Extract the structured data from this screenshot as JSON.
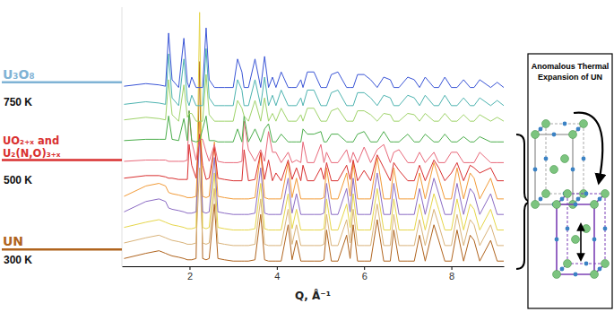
{
  "chart_data": {
    "type": "line",
    "x_label": "Q, Å⁻¹",
    "x": [
      0.5,
      1.0,
      1.3,
      1.45,
      1.52,
      1.6,
      1.75,
      1.87,
      1.95,
      1.99,
      2.05,
      2.15,
      2.23,
      2.3,
      2.38,
      2.45,
      2.57,
      2.65,
      2.8,
      3.0,
      3.1,
      3.2,
      3.25,
      3.35,
      3.5,
      3.63,
      3.72,
      3.81,
      3.9,
      3.98,
      4.1,
      4.26,
      4.35,
      4.45,
      4.55,
      4.6,
      4.7,
      4.85,
      5.01,
      5.08,
      5.14,
      5.25,
      5.4,
      5.6,
      5.68,
      5.75,
      5.85,
      6.0,
      6.15,
      6.3,
      6.45,
      6.6,
      6.68,
      6.8,
      7.0,
      7.15,
      7.27,
      7.4,
      7.6,
      7.71,
      7.85,
      8.0,
      8.13,
      8.28,
      8.43,
      8.52,
      8.65,
      8.9,
      9.05,
      9.2
    ],
    "series": [
      {
        "color": "#b0641e",
        "values": [
          3,
          5,
          6,
          5,
          4.5,
          4,
          3.5,
          3,
          2.5,
          2.5,
          2.5,
          3,
          79,
          3,
          2.5,
          3,
          24,
          3,
          2.5,
          2,
          2,
          2,
          2,
          2,
          2.5,
          20,
          2.5,
          2,
          2,
          2,
          2,
          16,
          2.5,
          10,
          2,
          2,
          2,
          2,
          2,
          2.5,
          14,
          2,
          2,
          12,
          3,
          16,
          2,
          2,
          2,
          18,
          2,
          2,
          14,
          2,
          2,
          2,
          12,
          2,
          16,
          10,
          2,
          2,
          14,
          2,
          12,
          10,
          2,
          10,
          2,
          2
        ]
      },
      {
        "color": "#d9b37a",
        "values": [
          9,
          11,
          12,
          11,
          10.5,
          10,
          9.5,
          9,
          8.5,
          8.5,
          8.5,
          9,
          38,
          9,
          8.5,
          9,
          30,
          9,
          8.5,
          8,
          8,
          8,
          8,
          8,
          8.5,
          26,
          8.5,
          8,
          8,
          8,
          8,
          22,
          8.5,
          16,
          8,
          8,
          8,
          8,
          8,
          8.5,
          20,
          8,
          8,
          18,
          9,
          22,
          8,
          8,
          8,
          24,
          8,
          8,
          20,
          8,
          8,
          8,
          18,
          8,
          22,
          16,
          8,
          8,
          20,
          8,
          18,
          16,
          8,
          16,
          8,
          8
        ]
      },
      {
        "color": "#e6d64a",
        "values": [
          15,
          17,
          18,
          17,
          16.5,
          16,
          15.5,
          15,
          14.5,
          14.5,
          14.5,
          15,
          98,
          15,
          14.5,
          15,
          36,
          15,
          14.5,
          14,
          14,
          14,
          14,
          14,
          14.5,
          32,
          14.5,
          14,
          14,
          14,
          14,
          28,
          14.5,
          22,
          14,
          14,
          14,
          14,
          14,
          14.5,
          26,
          14,
          14,
          24,
          15,
          28,
          14,
          14,
          14,
          30,
          14,
          14,
          26,
          14,
          14,
          14,
          24,
          14,
          28,
          22,
          14,
          14,
          26,
          14,
          24,
          22,
          14,
          22,
          14,
          14
        ]
      },
      {
        "color": "#8c6cc4",
        "values": [
          21,
          25,
          26,
          25,
          22.5,
          22,
          21.5,
          21,
          20.5,
          20.5,
          20.5,
          21,
          50,
          21,
          20.5,
          21,
          42,
          21,
          20.5,
          20,
          20,
          20,
          20,
          20,
          20.5,
          38,
          20.5,
          20,
          20,
          20,
          20,
          34,
          20.5,
          28,
          20,
          20,
          20,
          20,
          20,
          20.5,
          32,
          20,
          20,
          30,
          21,
          34,
          20,
          20,
          20,
          36,
          20,
          20,
          32,
          20,
          20,
          20,
          30,
          20,
          34,
          28,
          20,
          20,
          32,
          20,
          30,
          28,
          20,
          28,
          20,
          20
        ]
      },
      {
        "color": "#f29b38",
        "values": [
          27,
          31,
          32,
          31,
          28.5,
          28,
          27.5,
          27,
          26.5,
          26.5,
          26.5,
          27,
          56,
          27,
          26.5,
          27,
          48,
          27,
          26.5,
          26,
          26,
          26,
          26,
          26,
          26.5,
          44,
          26.5,
          26,
          26,
          26,
          26,
          40,
          26.5,
          34,
          26,
          26,
          26,
          26,
          26,
          26.5,
          38,
          26,
          26,
          36,
          27,
          40,
          26,
          26,
          26,
          42,
          26,
          26,
          38,
          26,
          26,
          26,
          36,
          26,
          40,
          34,
          26,
          26,
          38,
          26,
          36,
          34,
          26,
          34,
          26,
          26
        ]
      },
      {
        "color": "#d93030",
        "values": [
          34,
          35,
          35,
          34.5,
          34,
          34,
          33.5,
          33.5,
          33.5,
          47,
          39,
          34,
          51,
          39,
          33.5,
          34,
          46,
          34,
          33.5,
          33,
          33,
          33,
          45,
          33,
          33.5,
          44,
          33.5,
          41,
          33,
          36,
          33,
          41,
          33.5,
          38,
          33,
          39,
          33,
          33,
          38,
          33.5,
          40,
          33,
          33,
          39,
          33.5,
          41,
          33,
          37,
          33,
          43,
          38,
          33,
          40,
          37,
          33,
          33,
          39,
          33,
          41,
          38,
          33,
          36,
          40,
          33,
          39,
          38,
          36,
          38,
          33,
          33
        ]
      },
      {
        "color": "#e8697a",
        "values": [
          40.5,
          41,
          41,
          41,
          40.5,
          40.5,
          40.5,
          40.5,
          41,
          60,
          48,
          41,
          49,
          49,
          44,
          40.5,
          47,
          40.5,
          40,
          40,
          40,
          40.5,
          56,
          45,
          40.5,
          45,
          40.5,
          52,
          44,
          44,
          40,
          44,
          40,
          41,
          40,
          48,
          40,
          40,
          47,
          40,
          44,
          40,
          40,
          45,
          40,
          44,
          40,
          46,
          40,
          45,
          47,
          40,
          44,
          45,
          40,
          40,
          44,
          40,
          44,
          40,
          40,
          44,
          44,
          40,
          40,
          40,
          44,
          40,
          40,
          40
        ]
      },
      {
        "color": "#4cae4c",
        "values": [
          48.5,
          49,
          49,
          49,
          58,
          49,
          48.5,
          57,
          48.5,
          60,
          48.5,
          48,
          48.5,
          53,
          58,
          48.5,
          48.5,
          48,
          48,
          48,
          53,
          48,
          58,
          48,
          53,
          48,
          53,
          55,
          48,
          48,
          51,
          48,
          48,
          48,
          48,
          53,
          51,
          51,
          52,
          48,
          48,
          51,
          51,
          48,
          48,
          48,
          51,
          52,
          48,
          48,
          52,
          48,
          48,
          48,
          51,
          48,
          48,
          51,
          48,
          48,
          51,
          48,
          48,
          50,
          48,
          48,
          50,
          48,
          48,
          48
        ]
      },
      {
        "color": "#9fd36a",
        "values": [
          56.5,
          57.5,
          57,
          56.5,
          72,
          58.5,
          56,
          70,
          57.5,
          59,
          59,
          56,
          56,
          56,
          74,
          58.5,
          56,
          56,
          56,
          56,
          64,
          61,
          58,
          56,
          64,
          56,
          65,
          56,
          59,
          56,
          61,
          56,
          56,
          56,
          58.5,
          56,
          61,
          61,
          56,
          56,
          56,
          60,
          61,
          56,
          56,
          56,
          60,
          60,
          58.5,
          56,
          59,
          58.5,
          56,
          56,
          59,
          58.5,
          56,
          59,
          56,
          56,
          59,
          56,
          56,
          58.5,
          56,
          56,
          58.5,
          56,
          57.5,
          56
        ]
      },
      {
        "color": "#4db3b0",
        "values": [
          62.5,
          63.5,
          63,
          62.5,
          82,
          65,
          62,
          80,
          64,
          62,
          66,
          62,
          62,
          62,
          84,
          65,
          62,
          62,
          62,
          62,
          72,
          68,
          62,
          62,
          72,
          62,
          73,
          62,
          66,
          62,
          68,
          62,
          62,
          62,
          65,
          62,
          68,
          68,
          62,
          62,
          62,
          67,
          68,
          62,
          62,
          62,
          67,
          67,
          65,
          62,
          66,
          65,
          62,
          62,
          66,
          65,
          62,
          66,
          62,
          62,
          66,
          62,
          62,
          65,
          62,
          62,
          65,
          62,
          64,
          62
        ]
      },
      {
        "color": "#3a55d6",
        "values": [
          69.5,
          70.5,
          70,
          69.5,
          90,
          72,
          69,
          88,
          71,
          69,
          73,
          69,
          69,
          69,
          92,
          72,
          69,
          69,
          69,
          69,
          80,
          75,
          69,
          69,
          80,
          69,
          81,
          69,
          73,
          69,
          75,
          69,
          69,
          69,
          72,
          69,
          75,
          75,
          69,
          69,
          69,
          74,
          75,
          69,
          69,
          69,
          74,
          74,
          72,
          69,
          73,
          72,
          69,
          69,
          73,
          72,
          69,
          73,
          69,
          69,
          73,
          69,
          69,
          72,
          69,
          69,
          72,
          69,
          71,
          69
        ]
      }
    ],
    "xlim": [
      0.45,
      9.2
    ],
    "xticks": [
      2,
      4,
      6,
      8
    ],
    "ylim": [
      0,
      100
    ],
    "tick_labels": "x",
    "annotations": [
      {
        "text": [
          "U₃O₈"
        ],
        "color": "#7fb3d5",
        "y": 71
      },
      {
        "text": [
          "750 K"
        ],
        "y": 63
      },
      {
        "text": [
          "UO₂₊ₓ and",
          "U₂(N,O)₃₊ₓ"
        ],
        "color": "#d93030",
        "y": 41
      },
      {
        "text": [
          "500 K"
        ],
        "y": 33
      },
      {
        "text": [
          "UN"
        ],
        "color": "#b0641e",
        "y": 6.5
      },
      {
        "text": [
          "300 K"
        ],
        "y": 2
      }
    ]
  },
  "inset": {
    "title": [
      "Anomalous Thermal",
      "Expansion of UN"
    ]
  }
}
